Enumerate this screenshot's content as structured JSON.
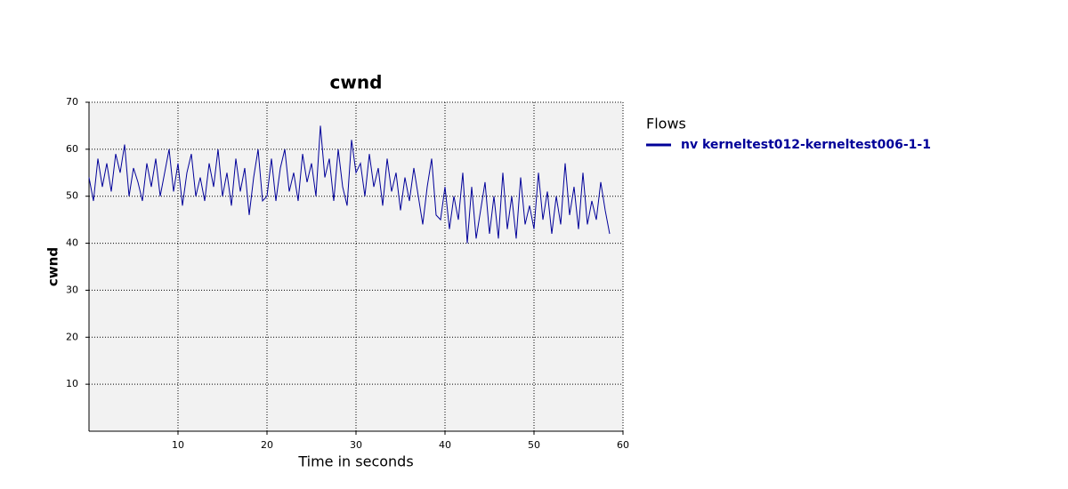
{
  "chart_data": {
    "type": "line",
    "title": "cwnd",
    "x_label": "Time in seconds",
    "y_label": "cwnd",
    "legend_title": "Flows",
    "x": [
      0,
      0.5,
      1,
      1.5,
      2,
      2.5,
      3,
      3.5,
      4,
      4.5,
      5,
      5.5,
      6,
      6.5,
      7,
      7.5,
      8,
      8.5,
      9,
      9.5,
      10,
      10.5,
      11,
      11.5,
      12,
      12.5,
      13,
      13.5,
      14,
      14.5,
      15,
      15.5,
      16,
      16.5,
      17,
      17.5,
      18,
      18.5,
      19,
      19.5,
      20,
      20.5,
      21,
      21.5,
      22,
      22.5,
      23,
      23.5,
      24,
      24.5,
      25,
      25.5,
      26,
      26.5,
      27,
      27.5,
      28,
      28.5,
      29,
      29.5,
      30,
      30.5,
      31,
      31.5,
      32,
      32.5,
      33,
      33.5,
      34,
      34.5,
      35,
      35.5,
      36,
      36.5,
      37,
      37.5,
      38,
      38.5,
      39,
      39.5,
      40,
      40.5,
      41,
      41.5,
      42,
      42.5,
      43,
      43.5,
      44,
      44.5,
      45,
      45.5,
      46,
      46.5,
      47,
      47.5,
      48,
      48.5,
      49,
      49.5,
      50,
      50.5,
      51,
      51.5,
      52,
      52.5,
      53,
      53.5,
      54,
      54.5,
      55,
      55.5,
      56,
      56.5,
      57,
      57.5,
      58,
      58.5
    ],
    "series": [
      {
        "name": "nv kerneltest012-kerneltest006-1-1",
        "color": "#000099",
        "values": [
          54,
          49,
          58,
          52,
          57,
          51,
          59,
          55,
          61,
          50,
          56,
          53,
          49,
          57,
          52,
          58,
          50,
          55,
          60,
          51,
          57,
          48,
          55,
          59,
          50,
          54,
          49,
          57,
          52,
          60,
          50,
          55,
          48,
          58,
          51,
          56,
          46,
          54,
          60,
          49,
          50,
          58,
          49,
          56,
          60,
          51,
          55,
          49,
          59,
          53,
          57,
          50,
          65,
          54,
          58,
          49,
          60,
          52,
          48,
          62,
          55,
          57,
          50,
          59,
          52,
          56,
          48,
          58,
          51,
          55,
          47,
          54,
          49,
          56,
          50,
          44,
          52,
          58,
          46,
          45,
          52,
          43,
          50,
          45,
          55,
          40,
          52,
          41,
          47,
          53,
          42,
          50,
          41,
          55,
          43,
          50,
          41,
          54,
          44,
          48,
          43,
          55,
          45,
          51,
          42,
          50,
          44,
          57,
          46,
          52,
          43,
          55,
          44,
          49,
          45,
          53,
          47,
          42
        ]
      }
    ],
    "xlim": [
      0,
      60
    ],
    "ylim": [
      0,
      70
    ],
    "xticks": [
      10,
      20,
      30,
      40,
      50,
      60
    ],
    "yticks": [
      10,
      20,
      30,
      40,
      50,
      60,
      70
    ],
    "grid": true
  }
}
